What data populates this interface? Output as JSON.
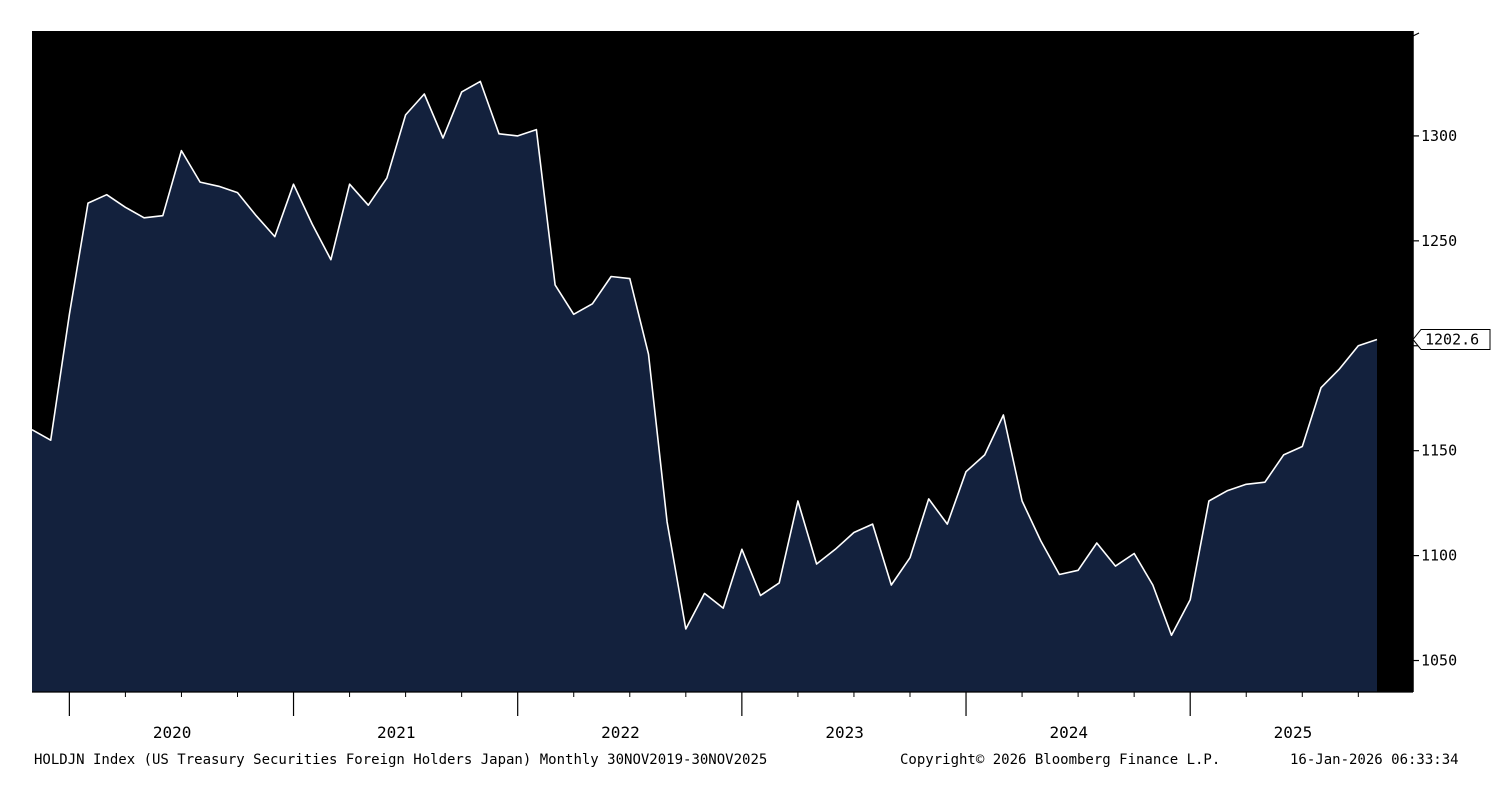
{
  "chart_data": {
    "type": "area",
    "series_name": "",
    "frequency": "Monthly",
    "x_start": "2019-11",
    "x_end": "2025-11",
    "values": [
      1160,
      1155,
      1215,
      1268,
      1272,
      1266,
      1261,
      1262,
      1293,
      1278,
      1276,
      1273,
      1262,
      1252,
      1277,
      1258,
      1241,
      1277,
      1267,
      1280,
      1310,
      1320,
      1299,
      1321,
      1326,
      1301,
      1300,
      1303,
      1229,
      1215,
      1220,
      1233,
      1232,
      1196,
      1116,
      1065,
      1082,
      1075,
      1103,
      1081,
      1087,
      1126,
      1096,
      1103,
      1111,
      1115,
      1086,
      1099,
      1127,
      1115,
      1140,
      1148,
      1167,
      1126,
      1107,
      1091,
      1093,
      1106,
      1095,
      1101,
      1086,
      1062,
      1079,
      1126,
      1131,
      1134,
      1135,
      1148,
      1152,
      1180,
      1189,
      1200,
      1203
    ],
    "last_value_label": "1202.6",
    "ylim": [
      1035,
      1350
    ],
    "y_ticks": [
      "1050",
      "1100",
      "1150",
      "1200",
      "1250",
      "1300"
    ],
    "y_tick_labels": [
      "1050",
      "1100",
      "1150",
      "",
      "1250",
      "1300"
    ],
    "x_year_labels": [
      "2020",
      "2021",
      "2022",
      "2023",
      "2024",
      "2025"
    ],
    "colors": {
      "background": "#000000",
      "area_fill": "#13213d",
      "line": "#ffffff",
      "axis": "#000000"
    }
  },
  "footer": {
    "description": "HOLDJN Index (US Treasury Securities Foreign Holders Japan) Monthly 30NOV2019-30NOV2025",
    "copyright": "Copyright© 2026 Bloomberg Finance L.P.",
    "timestamp": "16-Jan-2026 06:33:34"
  }
}
